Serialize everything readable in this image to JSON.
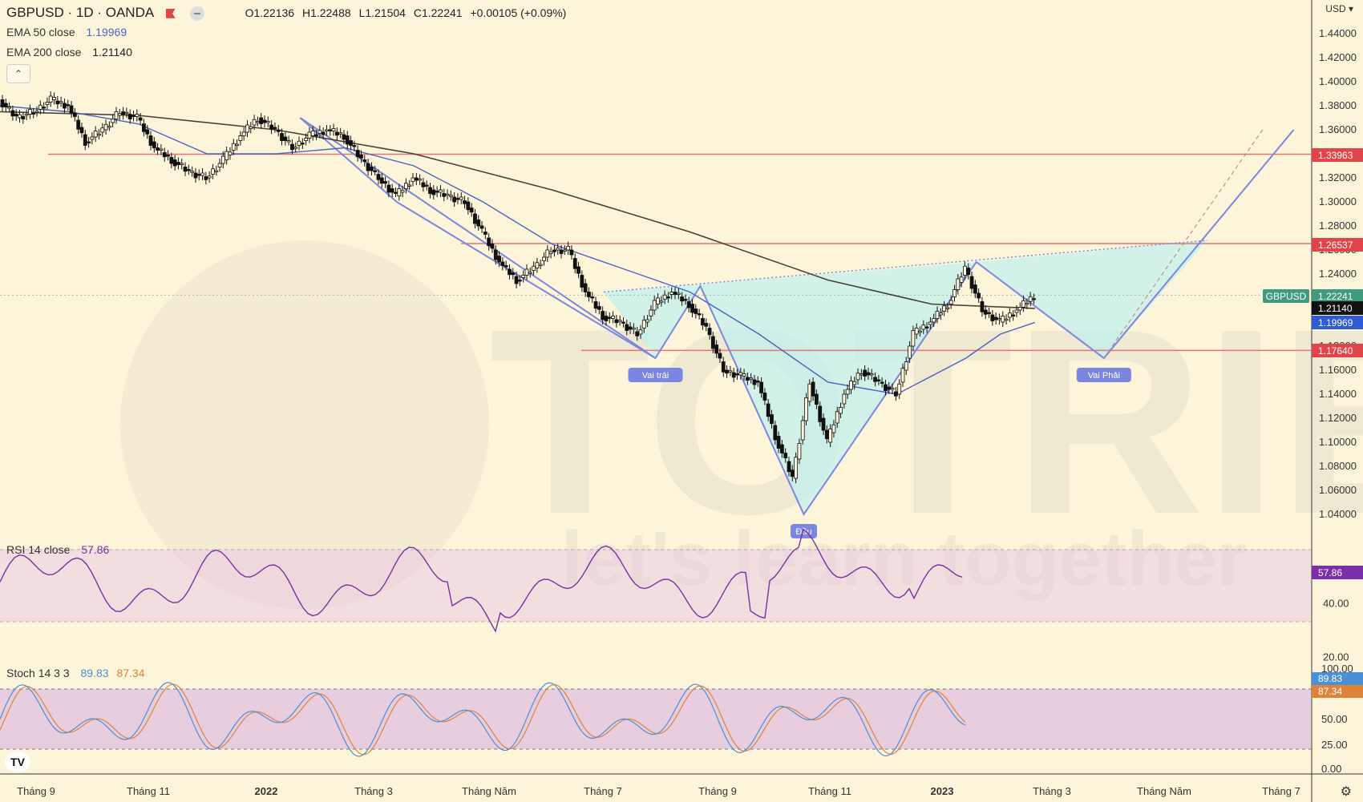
{
  "header": {
    "symbol": "GBPUSD · 1D · OANDA",
    "open": "O1.22136",
    "high": "H1.22488",
    "low": "L1.21504",
    "close": "C1.22241",
    "change": "+0.00105 (+0.09%)"
  },
  "legends": {
    "ema50_label": "EMA 50 close",
    "ema50_value": "1.19969",
    "ema200_label": "EMA 200 close",
    "ema200_value": "1.21140",
    "rsi_label": "RSI 14 close",
    "rsi_value": "57.86",
    "stoch_label": "Stoch 14 3 3",
    "stoch_k": "89.83",
    "stoch_d": "87.34"
  },
  "currency": "USD",
  "colors": {
    "background": "#fdf5d9",
    "ema50": "#4a63c8",
    "ema200": "#4a4036",
    "pattern_line": "#7b86e0",
    "pattern_fill": "#bfeff0",
    "resistance": "#e57373",
    "rsi": "#7b2fa8",
    "stoch_k": "#4a90d9",
    "stoch_d": "#e0833a",
    "label_red": "#e0454a",
    "label_green": "#3e9b80"
  },
  "watermark": {
    "line1": "TOTRIEU",
    "line2": "let's learn together"
  },
  "chart_data": [
    {
      "type": "candlestick",
      "title": "GBPUSD · 1D · OANDA",
      "x_ticks": [
        "Tháng 9",
        "Tháng 11",
        "2022",
        "Tháng 3",
        "Tháng Năm",
        "Tháng 7",
        "Tháng 9",
        "Tháng 11",
        "2023",
        "Tháng 3",
        "Tháng Năm",
        "Tháng 7"
      ],
      "y_ticks": [
        "1.44000",
        "1.42000",
        "1.40000",
        "1.38000",
        "1.36000",
        "1.34000",
        "1.32000",
        "1.30000",
        "1.28000",
        "1.26000",
        "1.24000",
        "1.22000",
        "1.20000",
        "1.18000",
        "1.16000",
        "1.14000",
        "1.12000",
        "1.10000",
        "1.08000",
        "1.06000",
        "1.04000"
      ],
      "ylim": [
        1.0,
        1.46
      ],
      "x_range": [
        0,
        38
      ],
      "price_path": [
        [
          0,
          1.385
        ],
        [
          0.5,
          1.37
        ],
        [
          1,
          1.375
        ],
        [
          1.5,
          1.385
        ],
        [
          2,
          1.38
        ],
        [
          2.5,
          1.35
        ],
        [
          3,
          1.36
        ],
        [
          3.5,
          1.375
        ],
        [
          4,
          1.37
        ],
        [
          4.5,
          1.345
        ],
        [
          5,
          1.335
        ],
        [
          5.5,
          1.325
        ],
        [
          6,
          1.32
        ],
        [
          6.5,
          1.335
        ],
        [
          7,
          1.355
        ],
        [
          7.5,
          1.37
        ],
        [
          8,
          1.36
        ],
        [
          8.5,
          1.345
        ],
        [
          9,
          1.355
        ],
        [
          9.5,
          1.36
        ],
        [
          10,
          1.355
        ],
        [
          10.5,
          1.335
        ],
        [
          11,
          1.32
        ],
        [
          11.5,
          1.305
        ],
        [
          12,
          1.32
        ],
        [
          12.5,
          1.31
        ],
        [
          13,
          1.305
        ],
        [
          13.5,
          1.3
        ],
        [
          14,
          1.275
        ],
        [
          14.5,
          1.25
        ],
        [
          15,
          1.235
        ],
        [
          15.5,
          1.245
        ],
        [
          16,
          1.26
        ],
        [
          16.5,
          1.26
        ],
        [
          17,
          1.225
        ],
        [
          17.5,
          1.205
        ],
        [
          18,
          1.2
        ],
        [
          18.5,
          1.19
        ],
        [
          19,
          1.215
        ],
        [
          19.5,
          1.225
        ],
        [
          20,
          1.215
        ],
        [
          20.5,
          1.195
        ],
        [
          21,
          1.16
        ],
        [
          21.5,
          1.155
        ],
        [
          22,
          1.15
        ],
        [
          22.5,
          1.105
        ],
        [
          23,
          1.07
        ],
        [
          23.5,
          1.15
        ],
        [
          24,
          1.1
        ],
        [
          24.5,
          1.14
        ],
        [
          25,
          1.16
        ],
        [
          25.5,
          1.15
        ],
        [
          26,
          1.14
        ],
        [
          26.5,
          1.19
        ],
        [
          27,
          1.2
        ],
        [
          27.5,
          1.215
        ],
        [
          28,
          1.245
        ],
        [
          28.5,
          1.21
        ],
        [
          29,
          1.2
        ],
        [
          29.5,
          1.21
        ],
        [
          30,
          1.222
        ]
      ],
      "ema50": [
        [
          0,
          1.38
        ],
        [
          2,
          1.375
        ],
        [
          4,
          1.365
        ],
        [
          6,
          1.34
        ],
        [
          8,
          1.34
        ],
        [
          10,
          1.345
        ],
        [
          12,
          1.33
        ],
        [
          14,
          1.3
        ],
        [
          16,
          1.265
        ],
        [
          18,
          1.245
        ],
        [
          20,
          1.225
        ],
        [
          22,
          1.19
        ],
        [
          24,
          1.15
        ],
        [
          26,
          1.14
        ],
        [
          28,
          1.17
        ],
        [
          29,
          1.19
        ],
        [
          30,
          1.19969
        ]
      ],
      "ema200": [
        [
          0,
          1.375
        ],
        [
          4,
          1.372
        ],
        [
          8,
          1.36
        ],
        [
          12,
          1.34
        ],
        [
          16,
          1.31
        ],
        [
          20,
          1.275
        ],
        [
          24,
          1.235
        ],
        [
          27,
          1.215
        ],
        [
          30,
          1.2114
        ]
      ],
      "horizontal_lines": [
        "1.33963",
        "1.26537",
        "1.17640"
      ],
      "price_labels": [
        {
          "text": "1.33963",
          "color": "red"
        },
        {
          "text": "1.26537",
          "color": "red"
        },
        {
          "text": "GBPUSD",
          "color": "green"
        },
        {
          "text": "1.22241",
          "color": "green"
        },
        {
          "text": "1.21140",
          "color": "black"
        },
        {
          "text": "1.19969",
          "color": "blue"
        },
        {
          "text": "1.17640",
          "color": "red"
        }
      ],
      "pattern": {
        "name": "inverse head and shoulders",
        "points": [
          {
            "label": "Vai trái",
            "x": 19.0,
            "y": 1.17
          },
          {
            "label": "Đầu",
            "x": 23.3,
            "y": 1.04
          },
          {
            "label": "Vai Phải",
            "x": 32.0,
            "y": 1.17
          }
        ],
        "target_y": 1.36
      }
    },
    {
      "type": "line",
      "title": "RSI 14 close",
      "y_ticks": [
        "40.00",
        "20.00"
      ],
      "ylim": [
        10,
        90
      ],
      "band": [
        30,
        70
      ],
      "last_value": "57.86"
    },
    {
      "type": "line",
      "title": "Stoch 14 3 3",
      "y_ticks": [
        "100.00",
        "75.00",
        "50.00",
        "25.00",
        "0.00"
      ],
      "ylim": [
        0,
        100
      ],
      "band": [
        20,
        80
      ],
      "series": [
        {
          "name": "%K",
          "last": "89.83"
        },
        {
          "name": "%D",
          "last": "87.34"
        }
      ]
    }
  ]
}
